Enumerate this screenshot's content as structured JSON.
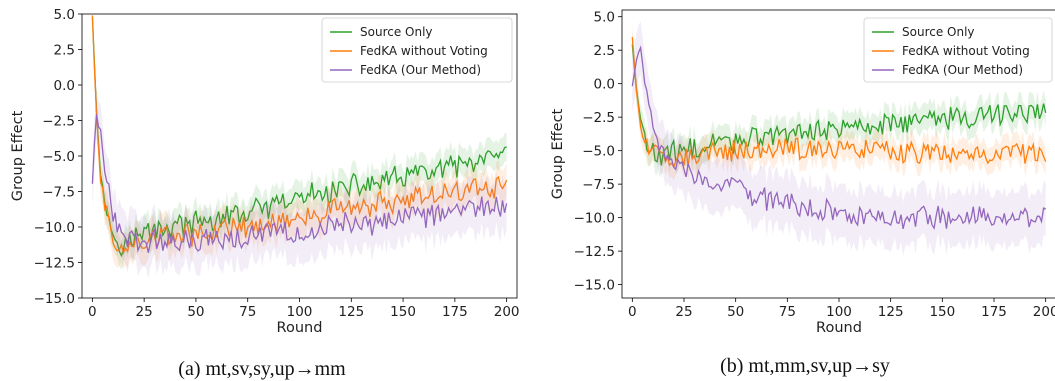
{
  "colors": {
    "source_only": "#2ca02c",
    "fedka_without_voting": "#ff7f0e",
    "fedka_ours": "#9467bd"
  },
  "chart_data": [
    {
      "type": "line",
      "caption": "(a) mt,sv,sy,up→mm",
      "xlabel": "Round",
      "ylabel": "Group Effect",
      "xlim": [
        -5,
        205
      ],
      "ylim": [
        -15,
        5
      ],
      "xticks": [
        0,
        25,
        50,
        75,
        100,
        125,
        150,
        175,
        200
      ],
      "yticks": [
        -15.0,
        -12.5,
        -10.0,
        -7.5,
        -5.0,
        -2.5,
        0.0,
        2.5,
        5.0
      ],
      "grid": false,
      "legend_position": "top-right",
      "legend": [
        "Source Only",
        "FedKA without Voting",
        "FedKA (Our Method)"
      ],
      "series": [
        {
          "name": "Source Only",
          "color_key": "source_only",
          "x": [
            0,
            2,
            4,
            6,
            8,
            10,
            15,
            20,
            25,
            30,
            40,
            50,
            60,
            75,
            90,
            100,
            110,
            125,
            140,
            150,
            160,
            175,
            190,
            200
          ],
          "y": [
            5.0,
            -1.5,
            -6.5,
            -8.0,
            -9.5,
            -10.5,
            -11.2,
            -10.8,
            -10.5,
            -10.2,
            -9.9,
            -9.8,
            -9.5,
            -9.0,
            -8.5,
            -8.0,
            -7.6,
            -7.2,
            -6.8,
            -6.5,
            -6.2,
            -5.8,
            -5.4,
            -5.0
          ],
          "band": 1.0
        },
        {
          "name": "FedKA without Voting",
          "color_key": "fedka_without_voting",
          "x": [
            0,
            2,
            4,
            6,
            8,
            10,
            15,
            20,
            25,
            30,
            40,
            50,
            60,
            75,
            90,
            100,
            110,
            125,
            140,
            150,
            160,
            175,
            190,
            200
          ],
          "y": [
            5.0,
            -2.0,
            -6.8,
            -8.5,
            -9.8,
            -10.8,
            -11.6,
            -11.3,
            -11.0,
            -10.8,
            -10.6,
            -10.5,
            -10.3,
            -10.0,
            -9.6,
            -9.3,
            -9.0,
            -8.6,
            -8.3,
            -8.0,
            -7.8,
            -7.5,
            -7.2,
            -7.0
          ],
          "band": 1.2
        },
        {
          "name": "FedKA (Our Method)",
          "color_key": "fedka_ours",
          "x": [
            0,
            2,
            4,
            6,
            8,
            10,
            15,
            20,
            25,
            30,
            40,
            50,
            60,
            75,
            90,
            100,
            110,
            125,
            140,
            150,
            160,
            175,
            190,
            200
          ],
          "y": [
            -6.8,
            -2.0,
            -3.5,
            -5.5,
            -7.5,
            -9.0,
            -10.5,
            -10.8,
            -11.0,
            -11.0,
            -11.2,
            -11.0,
            -10.8,
            -10.6,
            -10.4,
            -10.2,
            -10.0,
            -9.8,
            -9.6,
            -9.4,
            -9.2,
            -8.9,
            -8.6,
            -8.3
          ],
          "band": 1.8
        }
      ]
    },
    {
      "type": "line",
      "caption": "(b) mt,mm,sv,up→sy",
      "xlabel": "Round",
      "ylabel": "Group Effect",
      "xlim": [
        -5,
        205
      ],
      "ylim": [
        -16,
        5.5
      ],
      "xticks": [
        0,
        25,
        50,
        75,
        100,
        125,
        150,
        175,
        200
      ],
      "yticks": [
        -15.0,
        -12.5,
        -10.0,
        -7.5,
        -5.0,
        -2.5,
        0.0,
        2.5,
        5.0
      ],
      "grid": false,
      "legend_position": "top-right",
      "legend": [
        "Source Only",
        "FedKA without Voting",
        "FedKA (Our Method)"
      ],
      "series": [
        {
          "name": "Source Only",
          "color_key": "source_only",
          "x": [
            0,
            2,
            4,
            6,
            8,
            10,
            15,
            20,
            25,
            30,
            40,
            50,
            60,
            75,
            90,
            100,
            110,
            125,
            140,
            150,
            160,
            175,
            190,
            200
          ],
          "y": [
            3.0,
            -0.5,
            -2.8,
            -4.0,
            -4.8,
            -5.2,
            -5.4,
            -5.2,
            -5.0,
            -4.8,
            -4.5,
            -4.2,
            -4.0,
            -3.8,
            -3.5,
            -3.3,
            -3.1,
            -2.9,
            -2.7,
            -2.6,
            -2.5,
            -2.3,
            -2.1,
            -2.0
          ],
          "band": 1.0
        },
        {
          "name": "FedKA without Voting",
          "color_key": "fedka_without_voting",
          "x": [
            0,
            2,
            4,
            6,
            8,
            10,
            15,
            20,
            25,
            30,
            40,
            50,
            60,
            75,
            90,
            100,
            110,
            125,
            140,
            150,
            160,
            175,
            190,
            200
          ],
          "y": [
            3.6,
            -0.5,
            -3.0,
            -4.3,
            -5.0,
            -5.3,
            -5.6,
            -5.5,
            -5.4,
            -5.3,
            -5.2,
            -5.0,
            -4.9,
            -4.8,
            -4.9,
            -5.0,
            -5.0,
            -5.0,
            -5.1,
            -5.1,
            -5.2,
            -5.2,
            -5.3,
            -5.3
          ],
          "band": 1.0
        },
        {
          "name": "FedKA (Our Method)",
          "color_key": "fedka_ours",
          "x": [
            0,
            2,
            4,
            6,
            8,
            10,
            15,
            20,
            25,
            30,
            40,
            50,
            60,
            75,
            90,
            100,
            110,
            125,
            140,
            150,
            160,
            175,
            190,
            200
          ],
          "y": [
            0.0,
            2.0,
            2.5,
            0.5,
            -1.5,
            -3.5,
            -5.0,
            -5.8,
            -6.2,
            -6.6,
            -7.2,
            -7.8,
            -8.4,
            -9.0,
            -9.4,
            -9.6,
            -9.8,
            -9.9,
            -10.0,
            -10.0,
            -10.0,
            -10.0,
            -10.0,
            -10.0
          ],
          "band": 2.0
        }
      ]
    }
  ]
}
